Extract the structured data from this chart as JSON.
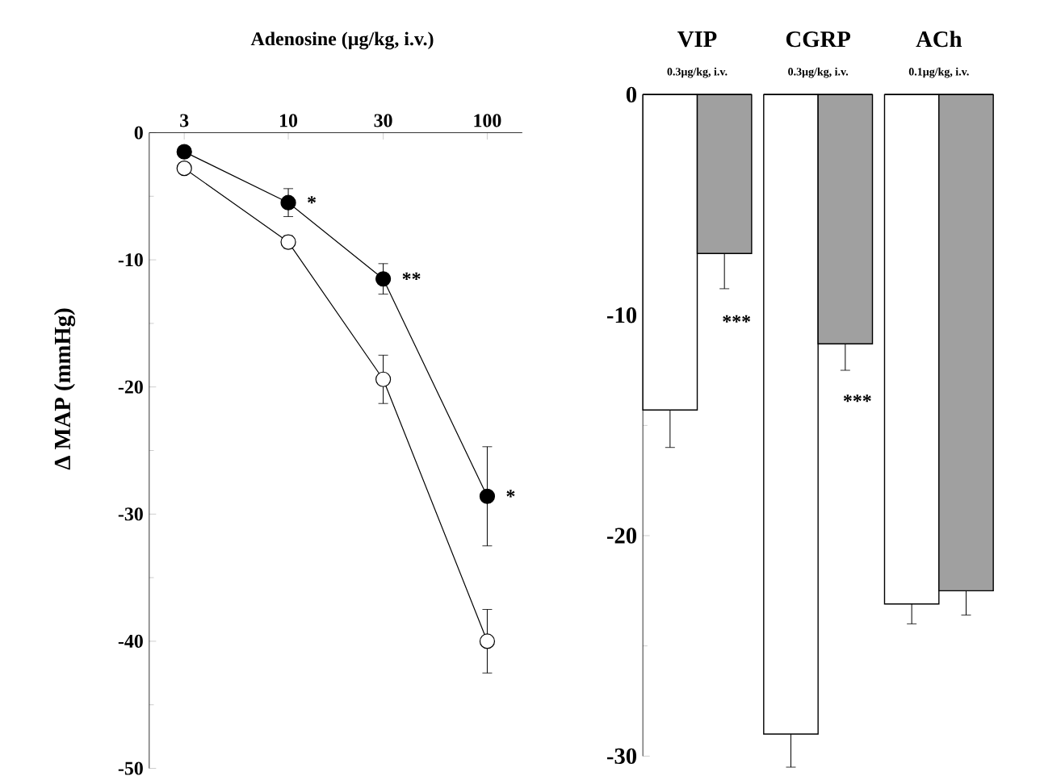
{
  "chart_data": [
    {
      "type": "line",
      "xlabel": "Adenosine (µg/kg, i.v.)",
      "ylabel": "Δ MAP (mmHg)",
      "log": "x",
      "xlim": [
        2,
        150
      ],
      "xticks": [
        3,
        10,
        30,
        100
      ],
      "ylim": [
        -50,
        0
      ],
      "yticks": [
        0,
        -10,
        -20,
        -30,
        -40,
        -50
      ],
      "marker": "circle",
      "series": [
        {
          "color": "#000000",
          "x": [
            3,
            10,
            30,
            100
          ],
          "values": [
            -1.5,
            -5.5,
            -11.5,
            -28.6
          ],
          "errors": [
            0.4,
            1.1,
            1.2,
            3.9
          ]
        },
        {
          "color": "#ffffff",
          "x": [
            3,
            10,
            30,
            100
          ],
          "values": [
            -2.8,
            -8.6,
            -19.4,
            -40.0
          ],
          "errors": [
            0.4,
            0.5,
            1.9,
            2.5
          ]
        }
      ],
      "annotations": [
        {
          "text": "*",
          "x": 10,
          "y": -5.5
        },
        {
          "text": "**",
          "x": 30,
          "y": -11.5
        },
        {
          "text": "*",
          "x": 100,
          "y": -28.6
        }
      ]
    },
    {
      "type": "bar",
      "categories": [
        "VIP",
        "CGRP",
        "ACh"
      ],
      "ylim": [
        -30,
        0
      ],
      "yticks": [
        0,
        -10,
        -20,
        -30
      ],
      "series": [
        {
          "color": "#ffffff",
          "values": [
            -14.3,
            -29.0,
            -23.1
          ],
          "errors": [
            1.7,
            1.5,
            0.9
          ]
        },
        {
          "color": "#a0a0a0",
          "values": [
            -7.2,
            -11.3,
            -22.5
          ],
          "errors": [
            1.6,
            1.2,
            1.1
          ]
        }
      ],
      "annotations": [
        "0.3µg/kg, i.v.",
        "0.3µg/kg, i.v.",
        "0.1µg/kg, i.v.",
        {
          "text": "***",
          "x": "VIP",
          "y": -9.6
        },
        {
          "text": "***",
          "x": "CGRP",
          "y": -13.2
        }
      ]
    }
  ]
}
